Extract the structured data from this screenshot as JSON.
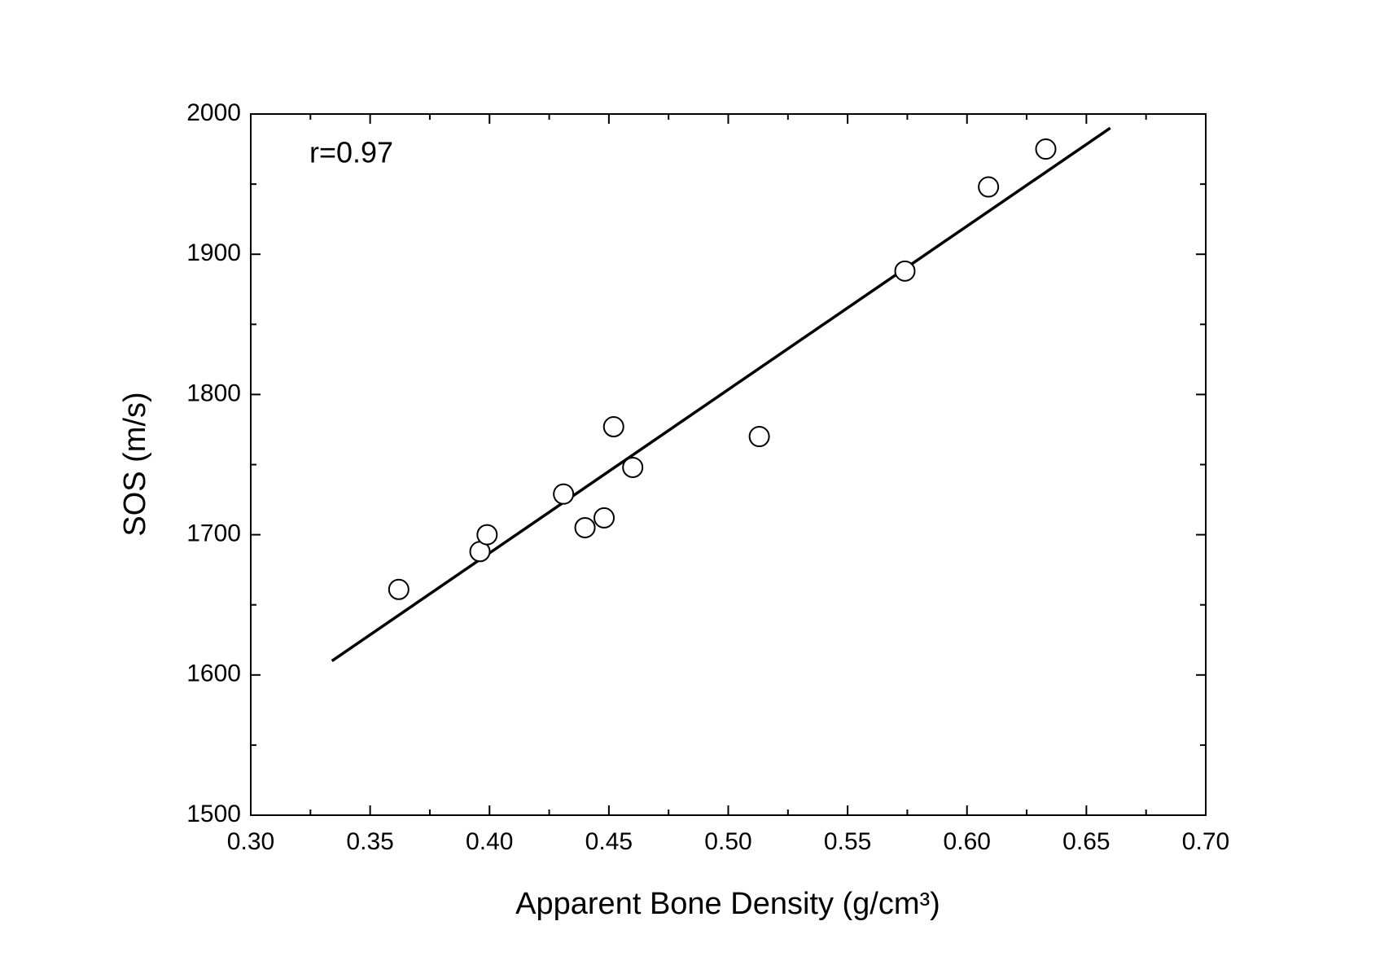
{
  "chart_data": {
    "type": "scatter",
    "xlabel": "Apparent Bone Density (g/cm³)",
    "ylabel": "SOS (m/s)",
    "annotation": "r=0.97",
    "series": [
      {
        "color": "#000000",
        "x": [
          0.362,
          0.396,
          0.399,
          0.431,
          0.44,
          0.448,
          0.452,
          0.46,
          0.513,
          0.574,
          0.609,
          0.633
        ],
        "values": [
          1661,
          1688,
          1700,
          1729,
          1705,
          1712,
          1777,
          1748,
          1770,
          1888,
          1948,
          1975
        ]
      }
    ],
    "fit_line": {
      "color": "#000000",
      "x": [
        0.334,
        0.66
      ],
      "values": [
        1610,
        1990
      ]
    },
    "xlim": [
      0.3,
      0.7
    ],
    "ylim": [
      1500,
      2000
    ],
    "xticks": [
      {
        "value": 0.3,
        "label": "0.30"
      },
      {
        "value": 0.35,
        "label": "0.35"
      },
      {
        "value": 0.4,
        "label": "0.40"
      },
      {
        "value": 0.45,
        "label": "0.45"
      },
      {
        "value": 0.5,
        "label": "0.50"
      },
      {
        "value": 0.55,
        "label": "0.55"
      },
      {
        "value": 0.6,
        "label": "0.60"
      },
      {
        "value": 0.65,
        "label": "0.65"
      },
      {
        "value": 0.7,
        "label": "0.70"
      }
    ],
    "yticks": [
      1500,
      1600,
      1700,
      1800,
      1900,
      2000
    ],
    "xminor_ticks": [
      0.325,
      0.375,
      0.425,
      0.475,
      0.525,
      0.575,
      0.625,
      0.675
    ],
    "yminor_ticks": [
      1550,
      1650,
      1750,
      1850,
      1950
    ]
  }
}
